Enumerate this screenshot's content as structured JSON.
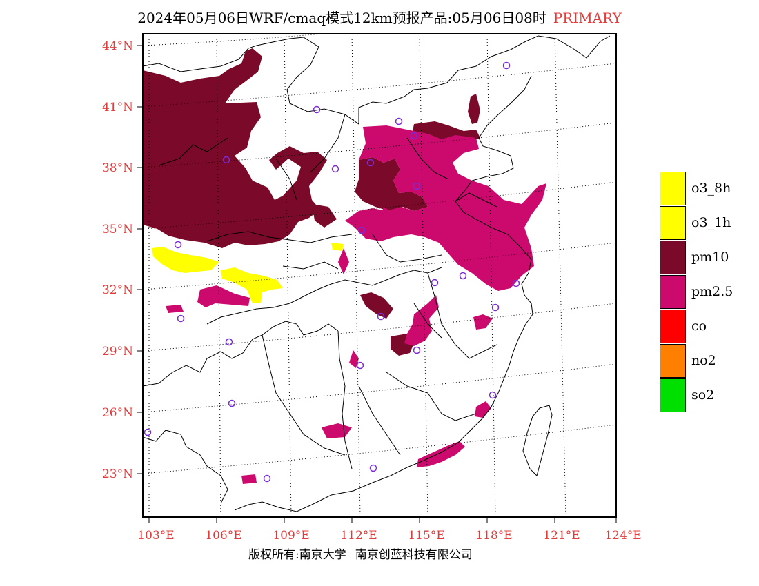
{
  "title": {
    "text": "2024年05月06日WRF/cmaq模式12km预报产品:05月06日08时",
    "tag": "PRIMARY"
  },
  "colors": {
    "axis_label": "#e03c3c",
    "pm10": "#7b0a2a",
    "pm25": "#cc0a6e",
    "o3": "#ffff00",
    "co": "#ff0000",
    "no2": "#ff8000",
    "so2": "#00e000",
    "station": "#7b2cd8"
  },
  "lat_labels": [
    "44°N",
    "41°N",
    "38°N",
    "35°N",
    "32°N",
    "29°N",
    "26°N",
    "23°N"
  ],
  "lon_labels": [
    "103°E",
    "106°E",
    "109°E",
    "112°E",
    "115°E",
    "118°E",
    "121°E",
    "124°E"
  ],
  "legend": [
    {
      "label": "o3_8h",
      "color": "#ffff00"
    },
    {
      "label": "o3_1h",
      "color": "#ffff00"
    },
    {
      "label": "pm10",
      "color": "#7b0a2a"
    },
    {
      "label": "pm2.5",
      "color": "#cc0a6e"
    },
    {
      "label": "co",
      "color": "#ff0000"
    },
    {
      "label": "no2",
      "color": "#ff8000"
    },
    {
      "label": "so2",
      "color": "#00e000"
    }
  ],
  "footer": {
    "left": "版权所有:南京大学",
    "right": "南京创蓝科技有限公司"
  }
}
